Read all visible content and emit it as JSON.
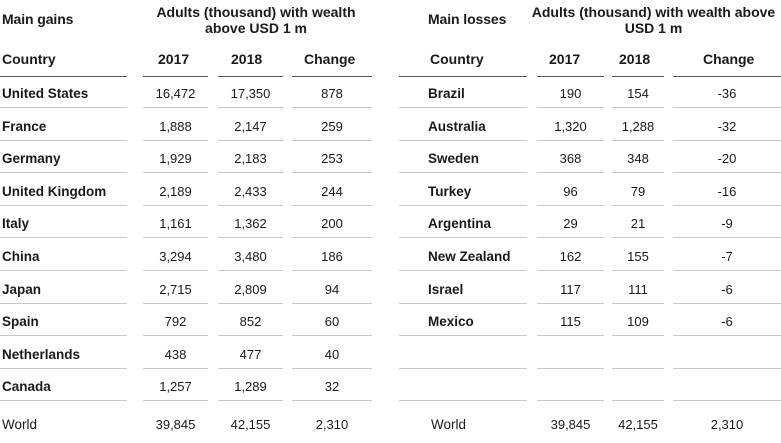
{
  "chart_data": {
    "type": "table",
    "caption": "Adults (thousand) with wealth above USD 1 m",
    "columns": [
      "Country",
      "2017",
      "2018",
      "Change"
    ],
    "gains": {
      "title": "Main gains",
      "rows": [
        {
          "country": "United States",
          "y2017": "16,472",
          "y2018": "17,350",
          "change": "878"
        },
        {
          "country": "France",
          "y2017": "1,888",
          "y2018": "2,147",
          "change": "259"
        },
        {
          "country": "Germany",
          "y2017": "1,929",
          "y2018": "2,183",
          "change": "253"
        },
        {
          "country": "United Kingdom",
          "y2017": "2,189",
          "y2018": "2,433",
          "change": "244"
        },
        {
          "country": "Italy",
          "y2017": "1,161",
          "y2018": "1,362",
          "change": "200"
        },
        {
          "country": "China",
          "y2017": "3,294",
          "y2018": "3,480",
          "change": "186"
        },
        {
          "country": "Japan",
          "y2017": "2,715",
          "y2018": "2,809",
          "change": "94"
        },
        {
          "country": "Spain",
          "y2017": "792",
          "y2018": "852",
          "change": "60"
        },
        {
          "country": "Netherlands",
          "y2017": "438",
          "y2018": "477",
          "change": "40"
        },
        {
          "country": "Canada",
          "y2017": "1,257",
          "y2018": "1,289",
          "change": "32"
        }
      ],
      "world": {
        "country": "World",
        "y2017": "39,845",
        "y2018": "42,155",
        "change": "2,310"
      }
    },
    "losses": {
      "title": "Main losses",
      "rows": [
        {
          "country": "Brazil",
          "y2017": "190",
          "y2018": "154",
          "change": "-36"
        },
        {
          "country": "Australia",
          "y2017": "1,320",
          "y2018": "1,288",
          "change": "-32"
        },
        {
          "country": "Sweden",
          "y2017": "368",
          "y2018": "348",
          "change": "-20"
        },
        {
          "country": "Turkey",
          "y2017": "96",
          "y2018": "79",
          "change": "-16"
        },
        {
          "country": "Argentina",
          "y2017": "29",
          "y2018": "21",
          "change": "-9"
        },
        {
          "country": "New Zealand",
          "y2017": "162",
          "y2018": "155",
          "change": "-7"
        },
        {
          "country": "Israel",
          "y2017": "117",
          "y2018": "111",
          "change": "-6"
        },
        {
          "country": "Mexico",
          "y2017": "115",
          "y2018": "109",
          "change": "-6"
        }
      ],
      "world": {
        "country": "World",
        "y2017": "39,845",
        "y2018": "42,155",
        "change": "2,310"
      }
    }
  }
}
